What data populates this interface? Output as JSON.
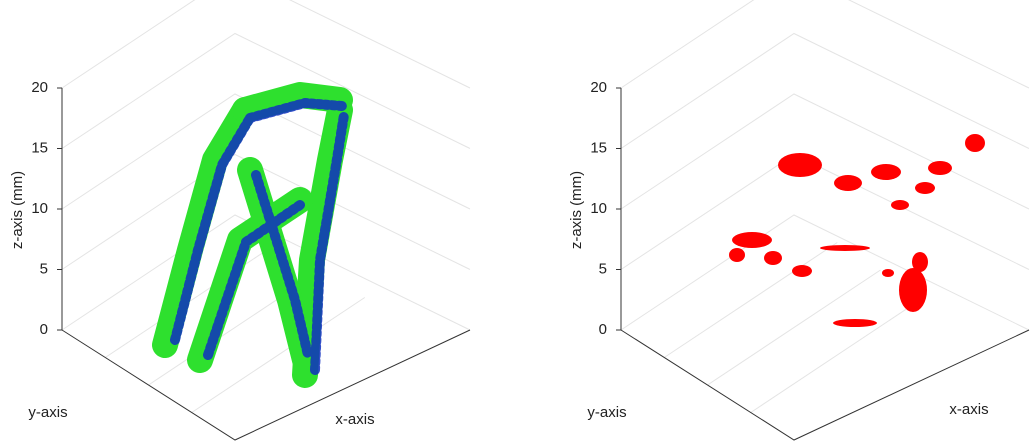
{
  "chart_data": [
    {
      "type": "scatter3d",
      "zlabel": "z-axis (mm)",
      "xlabel": "x-axis",
      "ylabel": "y-axis",
      "zlim": [
        0,
        20
      ],
      "zticks": [
        0,
        5,
        10,
        15,
        20
      ],
      "grid": true
    },
    {
      "type": "scatter3d",
      "zlabel": "z-axis (mm)",
      "xlabel": "x-axis",
      "ylabel": "y-axis",
      "zlim": [
        0,
        20
      ],
      "zticks": [
        0,
        5,
        10,
        15,
        20
      ],
      "grid": true
    }
  ]
}
